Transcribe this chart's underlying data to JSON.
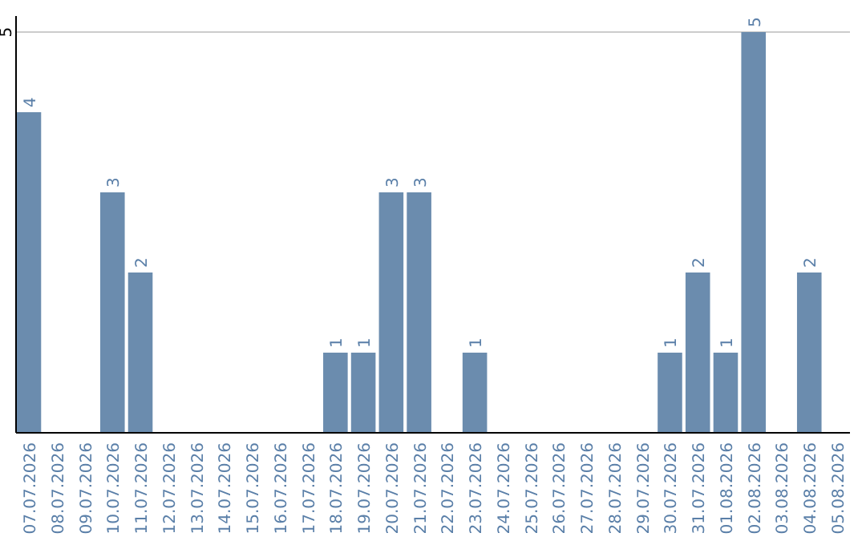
{
  "chart_data": {
    "type": "bar",
    "categories": [
      "07.07.2026",
      "08.07.2026",
      "09.07.2026",
      "10.07.2026",
      "11.07.2026",
      "12.07.2026",
      "13.07.2026",
      "14.07.2026",
      "15.07.2026",
      "16.07.2026",
      "17.07.2026",
      "18.07.2026",
      "19.07.2026",
      "20.07.2026",
      "21.07.2026",
      "22.07.2026",
      "23.07.2026",
      "24.07.2026",
      "25.07.2026",
      "26.07.2026",
      "27.07.2026",
      "28.07.2026",
      "29.07.2026",
      "30.07.2026",
      "31.07.2026",
      "01.08.2026",
      "02.08.2026",
      "03.08.2026",
      "04.08.2026",
      "05.08.2026"
    ],
    "values": [
      4,
      0,
      0,
      3,
      2,
      0,
      0,
      0,
      0,
      0,
      0,
      1,
      1,
      3,
      3,
      0,
      1,
      0,
      0,
      0,
      0,
      0,
      0,
      1,
      2,
      1,
      5,
      0,
      2,
      0
    ],
    "value_labels": [
      "4",
      null,
      null,
      "3",
      "2",
      null,
      null,
      null,
      null,
      null,
      null,
      "1",
      "1",
      "3",
      "3",
      null,
      "1",
      null,
      null,
      null,
      null,
      null,
      null,
      "1",
      "2",
      "1",
      "5",
      null,
      "2",
      null
    ],
    "color": "#6b8cae",
    "ylim": [
      0,
      5.2
    ],
    "yticks": [
      5
    ],
    "grid": "y"
  }
}
